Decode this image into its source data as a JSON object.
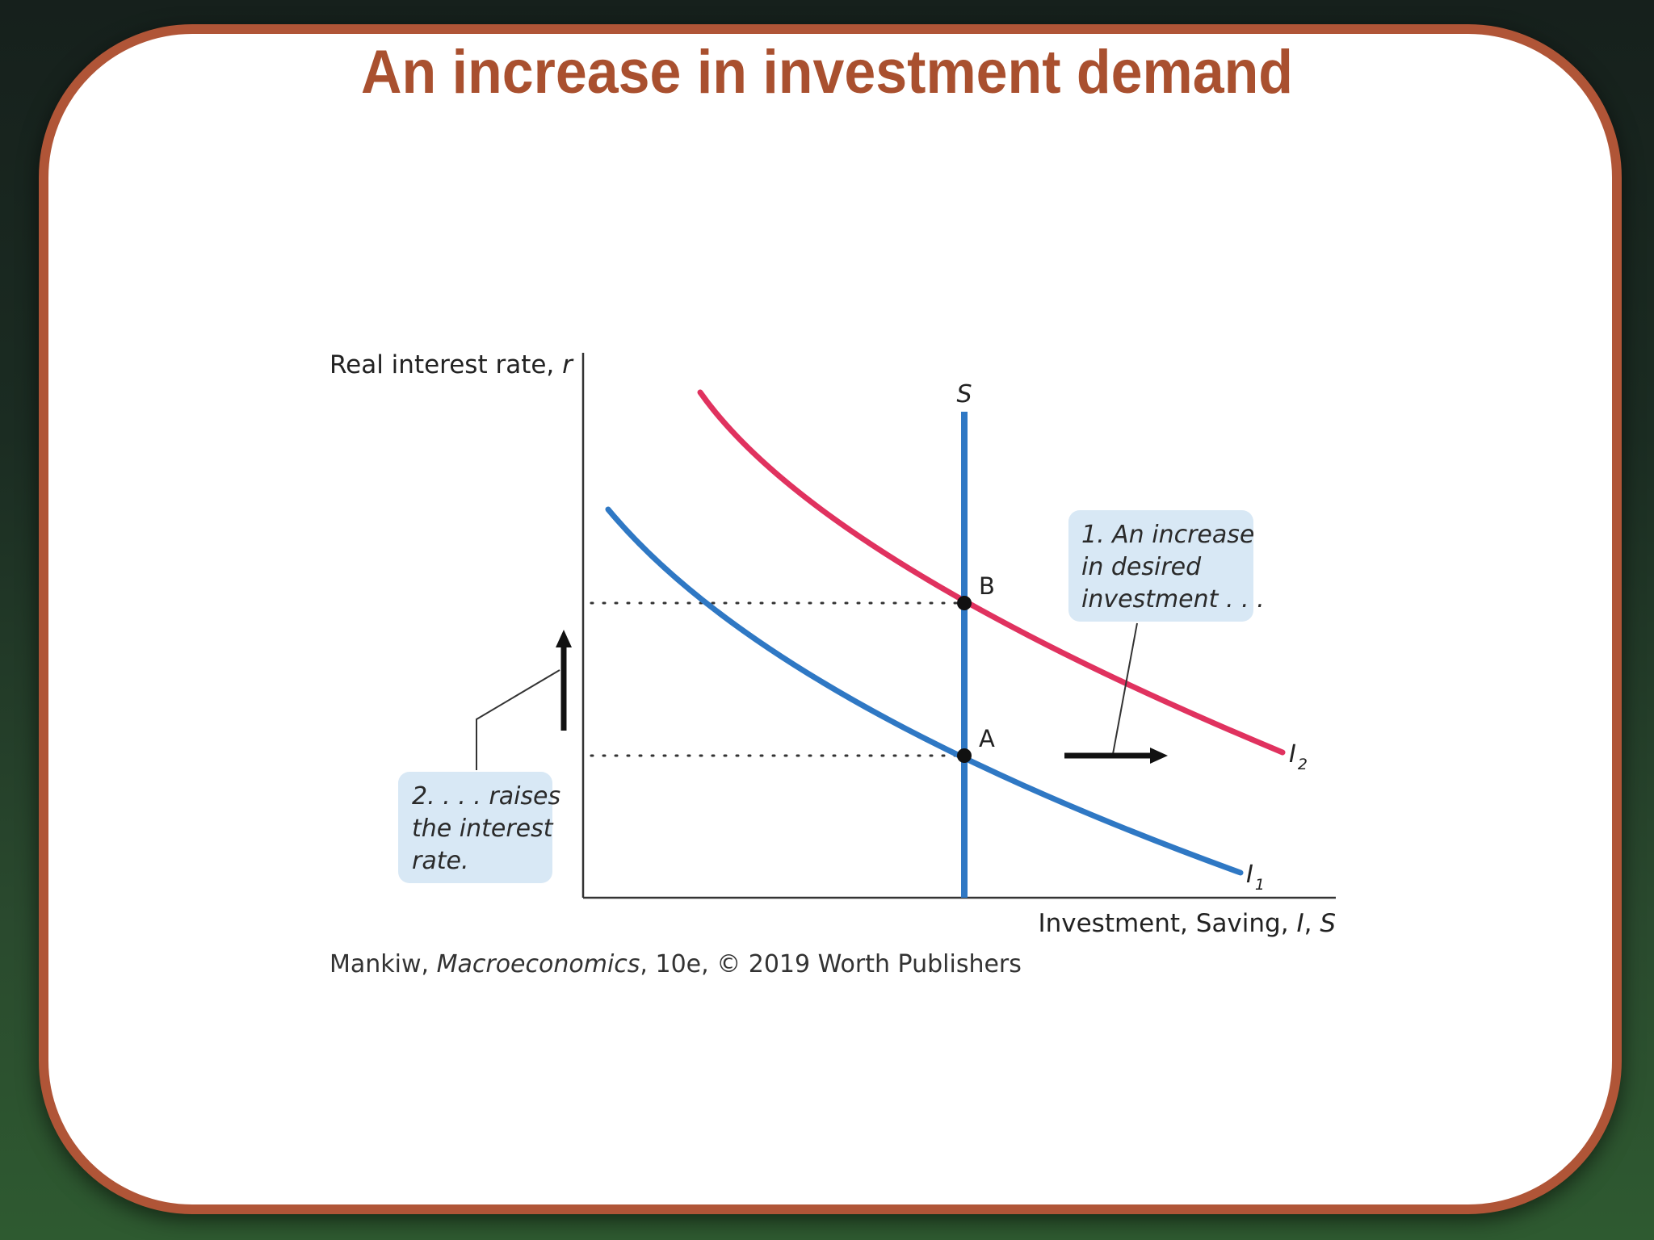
{
  "slide": {
    "title": "An increase in investment demand"
  },
  "diagram": {
    "y_axis_label": "Real interest rate, ",
    "y_axis_var": "r",
    "x_axis_label": "Investment, Saving, ",
    "x_axis_var_i": "I",
    "x_axis_sep": ", ",
    "x_axis_var_s": "S",
    "saving_curve_label": "S",
    "curve_i1_label": "I",
    "curve_i1_sub": "1",
    "curve_i2_label": "I",
    "curve_i2_sub": "2",
    "point_a": "A",
    "point_b": "B",
    "callout_1_line1": "1. An increase",
    "callout_1_line2": "in desired",
    "callout_1_line3": "investment . . .",
    "callout_2_line1": "2. . . . raises",
    "callout_2_line2": "the interest",
    "callout_2_line3": "rate.",
    "credit_author": "Mankiw, ",
    "credit_book": "Macroeconomics",
    "credit_rest": ", 10e, © 2019 Worth Publishers",
    "colors": {
      "i1_curve": "#2f78c4",
      "i2_curve": "#e0325f",
      "saving_curve": "#2f78c4",
      "callout_bg": "#d8e8f5",
      "title": "#a9502f",
      "border": "#b05537"
    }
  }
}
